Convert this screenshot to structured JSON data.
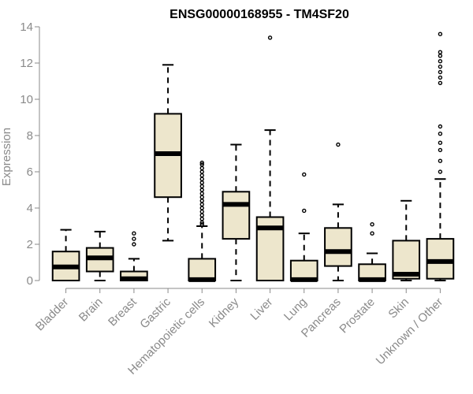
{
  "chart_data": {
    "type": "box",
    "title": "ENSG00000168955 - TM4SF20",
    "xlabel": "",
    "ylabel": "Expression",
    "ylim": [
      0,
      14
    ],
    "yticks": [
      0,
      2,
      4,
      6,
      8,
      10,
      12,
      14
    ],
    "grid": false,
    "legend": "none",
    "colors": {
      "box_fill": "#ede6cc",
      "box_stroke": "#000000",
      "axis": "#8a8a8a"
    },
    "categories": [
      "Bladder",
      "Brain",
      "Breast",
      "Gastric",
      "Hematopoietic cells",
      "Kidney",
      "Liver",
      "Lung",
      "Pancreas",
      "Prostate",
      "Skin",
      "Unknown / Other"
    ],
    "boxes": [
      {
        "category": "Bladder",
        "whisker_low": 0,
        "q1": 0,
        "median": 0.75,
        "q3": 1.6,
        "whisker_high": 2.8,
        "outliers": []
      },
      {
        "category": "Brain",
        "whisker_low": 0,
        "q1": 0.5,
        "median": 1.25,
        "q3": 1.8,
        "whisker_high": 2.7,
        "outliers": []
      },
      {
        "category": "Breast",
        "whisker_low": 0,
        "q1": 0,
        "median": 0.1,
        "q3": 0.5,
        "whisker_high": 1.2,
        "outliers": [
          2.0,
          2.3,
          2.6
        ]
      },
      {
        "category": "Gastric",
        "whisker_low": 2.2,
        "q1": 4.6,
        "median": 7.0,
        "q3": 9.2,
        "whisker_high": 11.9,
        "outliers": []
      },
      {
        "category": "Hematopoietic cells",
        "whisker_low": 0,
        "q1": 0,
        "median": 0.05,
        "q3": 1.2,
        "whisker_high": 3.0,
        "outliers": [
          3.1,
          3.2,
          3.4,
          3.6,
          3.8,
          4.0,
          4.2,
          4.4,
          4.6,
          4.8,
          5.0,
          5.2,
          5.4,
          5.6,
          5.8,
          6.0,
          6.2,
          6.4,
          6.5
        ]
      },
      {
        "category": "Kidney",
        "whisker_low": 0,
        "q1": 2.3,
        "median": 4.2,
        "q3": 4.9,
        "whisker_high": 7.5,
        "outliers": []
      },
      {
        "category": "Liver",
        "whisker_low": 0,
        "q1": 0,
        "median": 2.9,
        "q3": 3.5,
        "whisker_high": 8.3,
        "outliers": [
          13.4
        ]
      },
      {
        "category": "Lung",
        "whisker_low": 0,
        "q1": 0,
        "median": 0.05,
        "q3": 1.1,
        "whisker_high": 2.6,
        "outliers": [
          3.85,
          5.85
        ]
      },
      {
        "category": "Pancreas",
        "whisker_low": 0,
        "q1": 0.8,
        "median": 1.6,
        "q3": 2.9,
        "whisker_high": 4.2,
        "outliers": [
          7.5
        ]
      },
      {
        "category": "Prostate",
        "whisker_low": 0,
        "q1": 0,
        "median": 0.05,
        "q3": 0.9,
        "whisker_high": 1.5,
        "outliers": [
          2.6,
          3.1
        ]
      },
      {
        "category": "Skin",
        "whisker_low": 0,
        "q1": 0.1,
        "median": 0.35,
        "q3": 2.2,
        "whisker_high": 4.4,
        "outliers": []
      },
      {
        "category": "Unknown / Other",
        "whisker_low": 0,
        "q1": 0.1,
        "median": 1.05,
        "q3": 2.3,
        "whisker_high": 5.6,
        "outliers": [
          6.0,
          6.6,
          7.2,
          7.6,
          8.1,
          8.5,
          10.9,
          11.2,
          11.5,
          11.8,
          12.1,
          12.4,
          12.6,
          13.6
        ]
      }
    ]
  }
}
